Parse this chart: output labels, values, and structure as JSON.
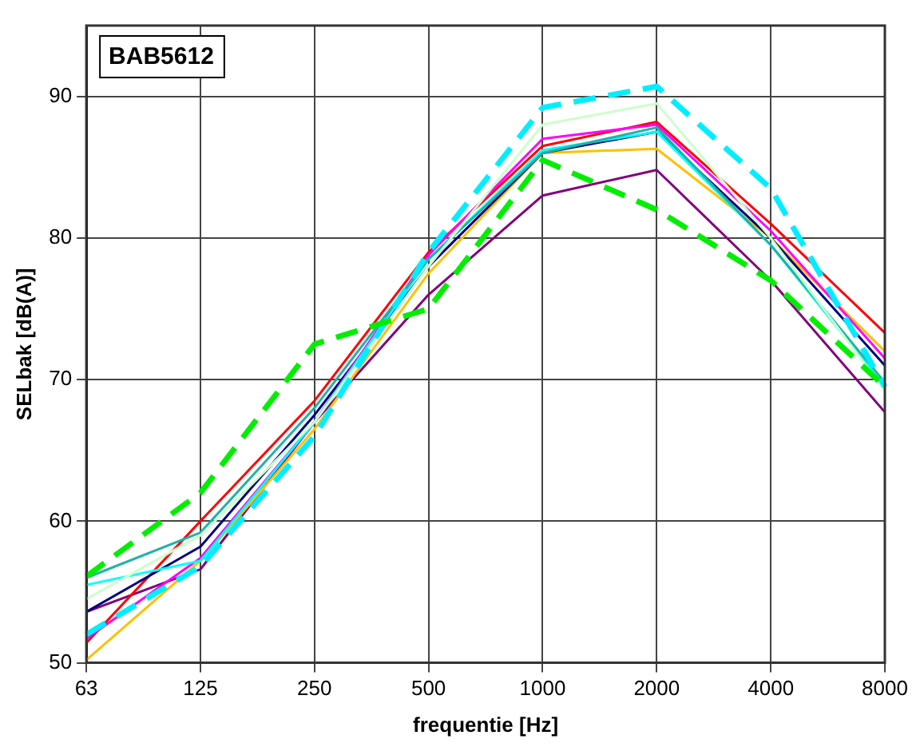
{
  "chart_data": {
    "type": "line",
    "xlabel": "frequentie [Hz]",
    "ylabel": "SELbak [dB(A)]",
    "annotations": [
      "BAB5612"
    ],
    "categories": [
      "63",
      "125",
      "250",
      "500",
      "1000",
      "2000",
      "4000",
      "8000"
    ],
    "ylim": [
      50,
      95
    ],
    "yticks": [
      50,
      60,
      70,
      80,
      90
    ],
    "grid": true,
    "legend": false,
    "marker": "none",
    "series": [
      {
        "color": "#00ee00",
        "line_style": "dashed",
        "values": [
          56.1,
          62,
          72.5,
          75,
          85.5,
          82,
          77,
          69.5
        ]
      },
      {
        "color": "#00eeff",
        "line_style": "dashed",
        "values": [
          52,
          56.8,
          66,
          79,
          89.2,
          90.7,
          83.5,
          69.5
        ]
      },
      {
        "color": "#ccffcc",
        "line_style": "solid",
        "values": [
          54.5,
          59,
          67,
          78,
          88,
          89.5,
          80,
          69.2
        ]
      },
      {
        "color": "#20b2aa",
        "line_style": "solid",
        "values": [
          56,
          59.2,
          68,
          78.5,
          86,
          87.8,
          79.5,
          69.8
        ]
      },
      {
        "color": "#00ffff",
        "line_style": "solid",
        "values": [
          55.5,
          57.2,
          67,
          78.5,
          86.2,
          87.5,
          79.5,
          69.5
        ]
      },
      {
        "color": "#ff00ff",
        "line_style": "solid",
        "values": [
          51.7,
          57.4,
          67,
          78.8,
          87,
          88,
          80.5,
          71.5
        ]
      },
      {
        "color": "#000080",
        "line_style": "solid",
        "values": [
          53.6,
          58.2,
          67.5,
          78,
          86,
          87.5,
          80,
          71
        ]
      },
      {
        "color": "#ff0000",
        "line_style": "solid",
        "values": [
          51.4,
          60,
          68.5,
          79,
          86.5,
          88.2,
          81,
          73.3
        ]
      },
      {
        "color": "#ffc000",
        "line_style": "solid",
        "values": [
          50.2,
          57.2,
          66.5,
          77.5,
          86,
          86.3,
          80,
          72
        ]
      },
      {
        "color": "#800080",
        "line_style": "solid",
        "values": [
          53.6,
          56.6,
          67,
          76,
          83,
          84.8,
          77,
          67.7
        ]
      }
    ]
  }
}
